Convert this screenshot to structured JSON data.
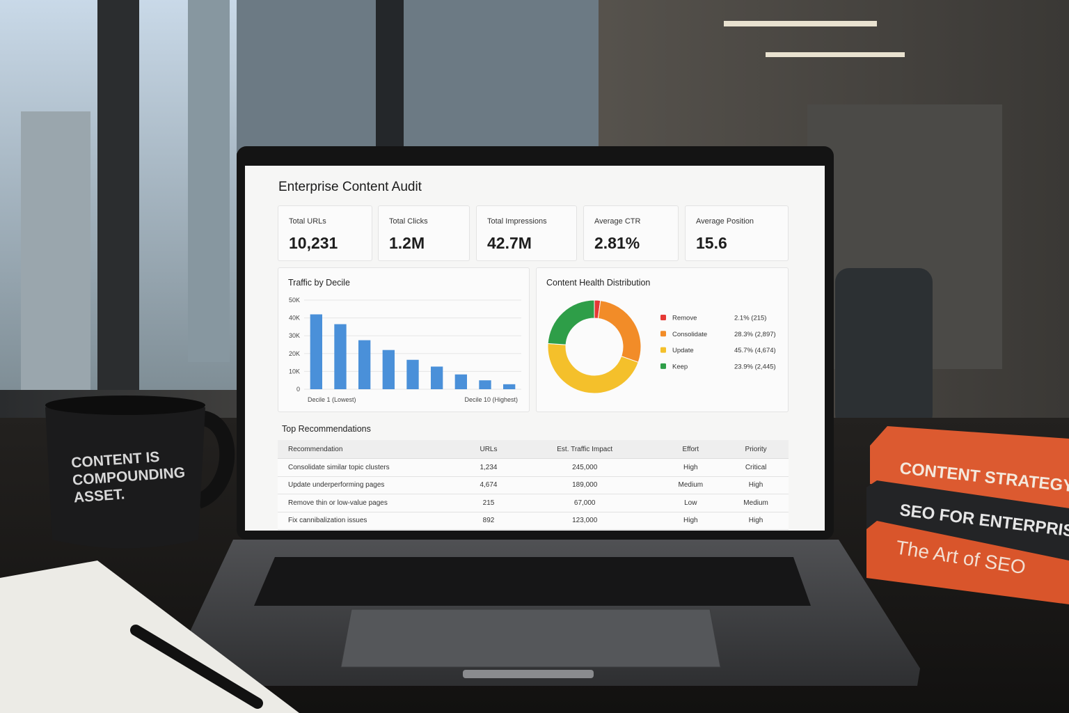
{
  "dashboard_title": "Enterprise Content Audit",
  "kpis": [
    {
      "label": "Total URLs",
      "value": "10,231"
    },
    {
      "label": "Total Clicks",
      "value": "1.2M"
    },
    {
      "label": "Total Impressions",
      "value": "42.7M"
    },
    {
      "label": "Average CTR",
      "value": "2.81%"
    },
    {
      "label": "Average Position",
      "value": "15.6"
    }
  ],
  "chart_data": [
    {
      "type": "bar",
      "title": "Traffic by Decile",
      "categories": [
        "Decile 1 (Lowest)",
        null,
        null,
        null,
        null,
        null,
        null,
        null,
        "Decile 10 (Highest)"
      ],
      "values": [
        42000,
        36500,
        27500,
        22000,
        16500,
        12700,
        8300,
        5000,
        2800
      ],
      "color": "#4a90d9",
      "ylim": [
        0,
        50000
      ],
      "yticks": [
        0,
        {
          "value": 10000,
          "label": "10K"
        },
        {
          "value": 20000,
          "label": "20K"
        },
        {
          "value": 30000,
          "label": "30K"
        },
        {
          "value": 40000,
          "label": "40K"
        },
        {
          "value": 50000,
          "label": "50K"
        }
      ],
      "grid": true
    },
    {
      "type": "pie",
      "title": "Content Health Distribution",
      "categories": [
        "Remove",
        "Consolidate",
        "Update",
        "Keep"
      ],
      "values": [
        2.1,
        28.3,
        45.7,
        23.9
      ],
      "value_labels": [
        "2.1% (215)",
        "28.3% (2,897)",
        "45.7% (4,674)",
        "23.9% (2,445)"
      ],
      "colors": [
        "#e53935",
        "#f28c28",
        "#f4c02b",
        "#2e9e48"
      ]
    }
  ],
  "table": {
    "title": "Top Recommendations",
    "columns": [
      "Recommendation",
      "URLs",
      "Est. Traffic Impact",
      "Effort",
      "Priority"
    ],
    "rows": [
      [
        "Consolidate similar topic clusters",
        "1,234",
        "245,000",
        "High",
        "Critical"
      ],
      [
        "Update underperforming pages",
        "4,674",
        "189,000",
        "Medium",
        "High"
      ],
      [
        "Remove thin or low-value pages",
        "215",
        "67,000",
        "Low",
        "Medium"
      ],
      [
        "Fix cannibalization issues",
        "892",
        "123,000",
        "High",
        "High"
      ]
    ]
  },
  "scene": {
    "mug_lines": [
      "CONTENT IS",
      "COMPOUNDING",
      "ASSET."
    ],
    "book_titles": [
      "CONTENT STRATEGY",
      "SEO FOR ENTERPRISE",
      "The Art of SEO"
    ]
  }
}
